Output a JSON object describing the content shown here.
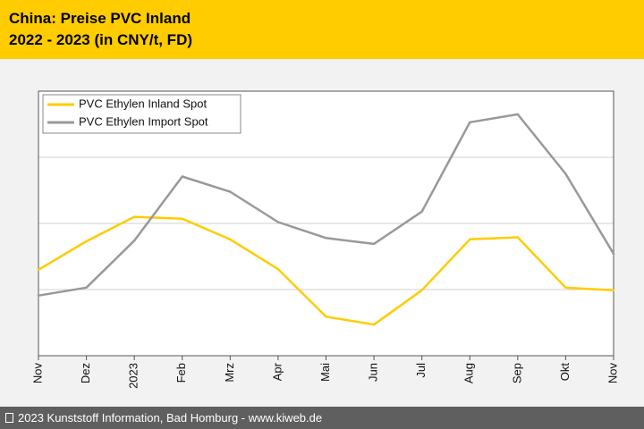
{
  "chart_data": {
    "type": "line",
    "title": "China: Preise PVC Inland",
    "subtitle": "2022 - 2023 (in CNY/t, FD)",
    "categories": [
      "Nov",
      "Dez",
      "2023",
      "Feb",
      "Mrz",
      "Apr",
      "Mai",
      "Jun",
      "Jul",
      "Aug",
      "Sep",
      "Okt",
      "Nov"
    ],
    "ylim": [
      0,
      4
    ],
    "grid": true,
    "legend_position": "top-left",
    "series": [
      {
        "name": "PVC Ethylen Inland Spot",
        "color": "#ffcc00",
        "values": [
          1.3,
          1.73,
          2.1,
          2.07,
          1.76,
          1.31,
          0.59,
          0.47,
          0.99,
          1.76,
          1.79,
          1.03,
          0.99
        ]
      },
      {
        "name": "PVC Ethylen Import Spot",
        "color": "#999999",
        "values": [
          0.91,
          1.03,
          1.74,
          2.71,
          2.48,
          2.02,
          1.78,
          1.69,
          2.18,
          3.53,
          3.65,
          2.75,
          1.54
        ]
      }
    ]
  },
  "footer": {
    "text": "2023 Kunststoff Information, Bad Homburg - www.kiweb.de"
  }
}
